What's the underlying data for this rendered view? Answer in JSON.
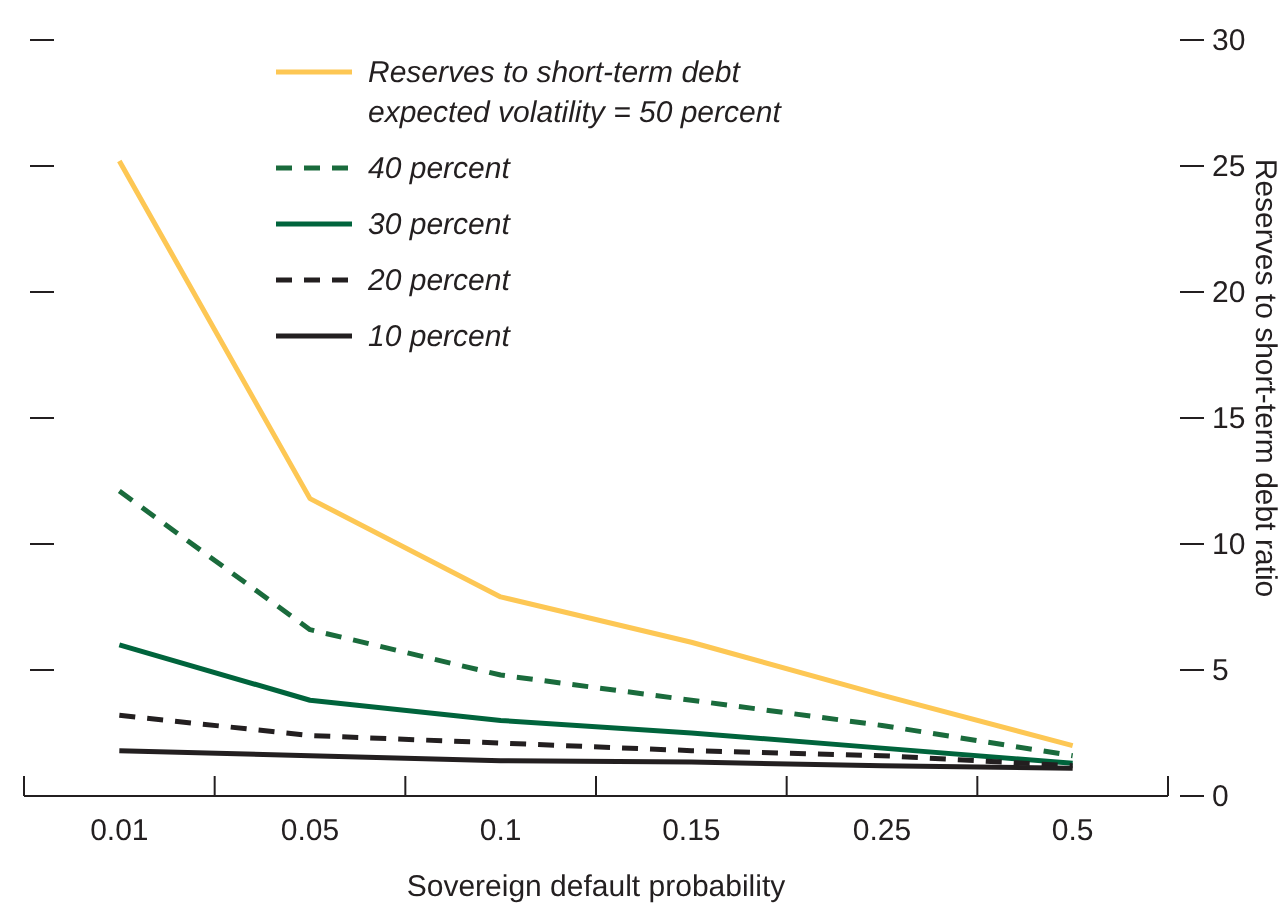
{
  "chart_data": {
    "type": "line",
    "xlabel": "Sovereign default probability",
    "ylabel": "Reserves to short-term debt ratio",
    "categories": [
      "0.01",
      "0.05",
      "0.1",
      "0.15",
      "0.25",
      "0.5"
    ],
    "ylim": [
      0,
      30
    ],
    "yticks": [
      0,
      5,
      10,
      15,
      20,
      25,
      30
    ],
    "legend": "top",
    "grid": false,
    "series": [
      {
        "name": "Reserves to short-term debt\nexpected volatility = 50 percent",
        "color": "#fdc754",
        "line_style": "solid",
        "values": [
          25.2,
          11.8,
          7.9,
          6.1,
          4.0,
          2.0
        ]
      },
      {
        "name": "40 percent",
        "color": "#1a6b3c",
        "line_style": "dashed",
        "values": [
          12.1,
          6.6,
          4.8,
          3.8,
          2.8,
          1.6
        ]
      },
      {
        "name": "30 percent",
        "color": "#00643c",
        "line_style": "solid",
        "values": [
          6.0,
          3.8,
          3.0,
          2.5,
          1.9,
          1.3
        ]
      },
      {
        "name": "20 percent",
        "color": "#231f20",
        "line_style": "dashed",
        "values": [
          3.2,
          2.4,
          2.1,
          1.8,
          1.6,
          1.2
        ]
      },
      {
        "name": "10 percent",
        "color": "#231f20",
        "line_style": "solid",
        "values": [
          1.8,
          1.6,
          1.4,
          1.35,
          1.2,
          1.1
        ]
      }
    ]
  }
}
